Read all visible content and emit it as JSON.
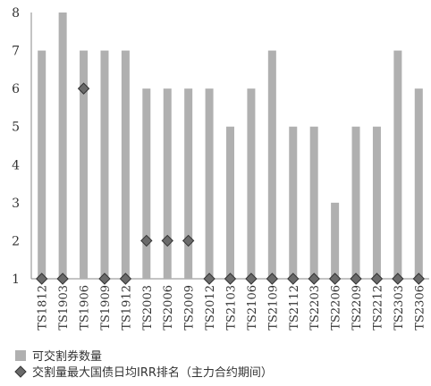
{
  "chart_data": {
    "type": "bar",
    "categories": [
      "TS1812",
      "TS1903",
      "TS1906",
      "TS1909",
      "TS1912",
      "TS2003",
      "TS2006",
      "TS2009",
      "TS2012",
      "TS2103",
      "TS2106",
      "TS2109",
      "TS2112",
      "TS2203",
      "TS2206",
      "TS2209",
      "TS2212",
      "TS2303",
      "TS2306"
    ],
    "series": [
      {
        "name": "可交割券数量",
        "kind": "bar",
        "color": "#b0b0b0",
        "values": [
          7,
          8,
          7,
          7,
          7,
          6,
          6,
          6,
          6,
          5,
          6,
          7,
          5,
          5,
          3,
          5,
          5,
          7,
          6
        ]
      },
      {
        "name": "交割量最大国债日均IRR排名（主力合约期间）",
        "kind": "marker",
        "marker": "diamond",
        "color": "#6a6a6a",
        "values": [
          1,
          1,
          6,
          1,
          1,
          2,
          2,
          2,
          1,
          1,
          1,
          1,
          1,
          1,
          1,
          1,
          1,
          1,
          1
        ]
      }
    ],
    "ylim": [
      1,
      8
    ],
    "yticks": [
      "1",
      "2",
      "3",
      "4",
      "5",
      "6",
      "7",
      "8"
    ],
    "grid": false,
    "legend_position": "bottom-left"
  }
}
